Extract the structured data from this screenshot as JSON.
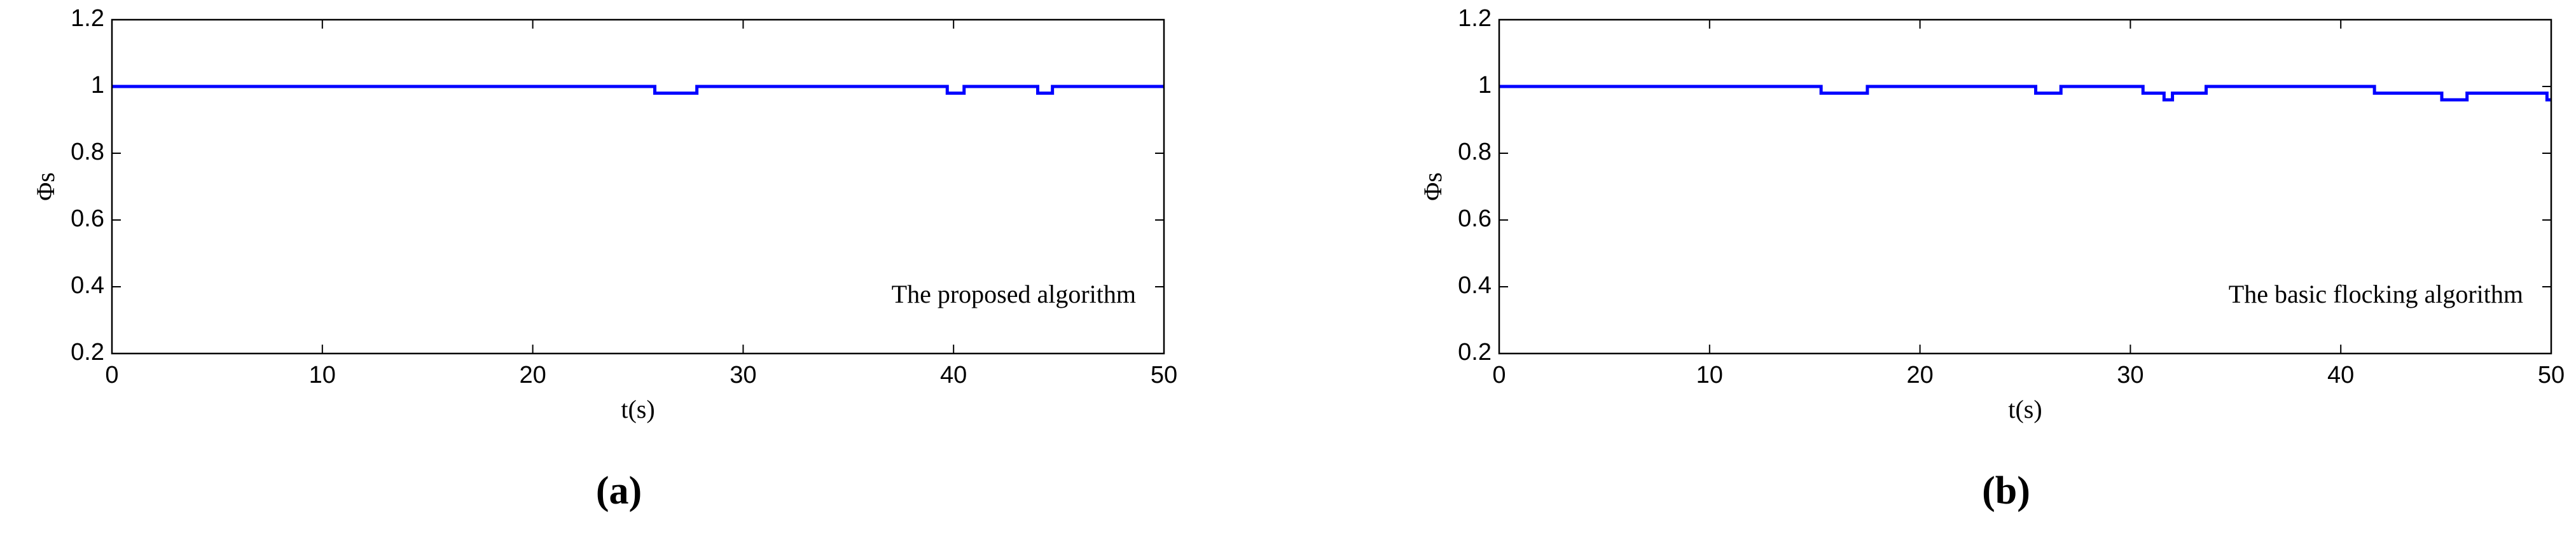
{
  "chart_data": [
    {
      "type": "line",
      "panel": "(a)",
      "ylabel": "Φs",
      "xlabel": "t(s)",
      "annotation": "The proposed algorithm",
      "color": "#0000ff",
      "x": [
        0,
        25.8,
        25.8,
        27.8,
        27.8,
        39.7,
        39.7,
        40.5,
        40.5,
        44,
        44,
        44.7,
        44.7,
        50
      ],
      "values": [
        1,
        1,
        0.98,
        0.98,
        1,
        1,
        0.98,
        0.98,
        1,
        1,
        0.98,
        0.98,
        1,
        1
      ],
      "xlim": [
        0,
        50
      ],
      "xticks": [
        0,
        10,
        20,
        30,
        40,
        50
      ],
      "ylim": [
        0.2,
        1.2
      ],
      "yticks": [
        0.2,
        0.4,
        0.6,
        0.8,
        1,
        1.2
      ]
    },
    {
      "type": "line",
      "panel": "(b)",
      "ylabel": "Φs",
      "xlabel": "t(s)",
      "annotation": "The basic flocking algorithm",
      "color": "#0000ff",
      "x": [
        0,
        15.3,
        15.3,
        17.5,
        17.5,
        25.5,
        25.5,
        26.7,
        26.7,
        30.6,
        30.6,
        31.6,
        31.6,
        32,
        32,
        33.6,
        33.6,
        41.6,
        41.6,
        44.8,
        44.8,
        46,
        46,
        49.8,
        49.8,
        50
      ],
      "values": [
        1,
        1,
        0.98,
        0.98,
        1,
        1,
        0.98,
        0.98,
        1,
        1,
        0.98,
        0.98,
        0.96,
        0.96,
        0.98,
        0.98,
        1,
        1,
        0.98,
        0.98,
        0.96,
        0.96,
        0.98,
        0.98,
        0.96,
        0.96
      ],
      "xlim": [
        0,
        50
      ],
      "xticks": [
        0,
        10,
        20,
        30,
        40,
        50
      ],
      "ylim": [
        0.2,
        1.2
      ],
      "yticks": [
        0.2,
        0.4,
        0.6,
        0.8,
        1,
        1.2
      ]
    }
  ]
}
